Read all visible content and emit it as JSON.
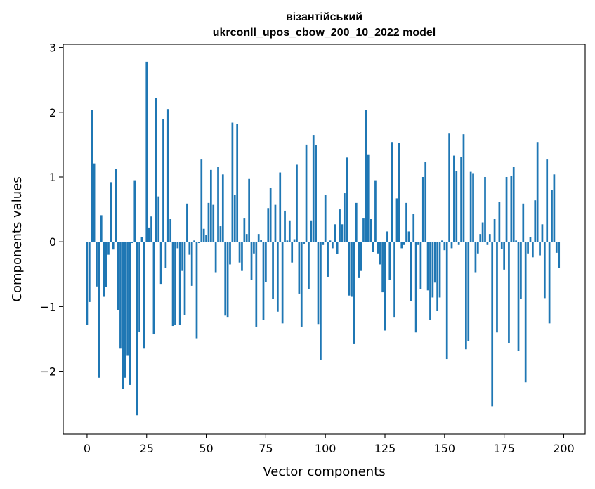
{
  "chart_data": {
    "type": "bar",
    "title_line1": "візантійський",
    "title_line2": "ukrconll_upos_cbow_200_10_2022 model",
    "xlabel": "Vector components",
    "ylabel": "Components values",
    "xlim": [
      -10,
      209
    ],
    "ylim": [
      -2.97,
      3.05
    ],
    "xticks": [
      0,
      25,
      50,
      75,
      100,
      125,
      150,
      175,
      200
    ],
    "yticks": [
      -2,
      -1,
      0,
      1,
      2,
      3
    ],
    "ytick_labels": [
      "−2",
      "−1",
      "0",
      "1",
      "2",
      "3"
    ],
    "grid": false,
    "bar_color": "#1f77b4",
    "values": [
      -1.28,
      -0.93,
      2.04,
      1.21,
      -0.69,
      -2.1,
      0.41,
      -0.85,
      -0.7,
      -0.2,
      0.92,
      -0.12,
      1.13,
      -1.05,
      -1.65,
      -2.27,
      -2.1,
      -1.75,
      -2.21,
      -0.02,
      0.95,
      -2.68,
      -1.39,
      0.07,
      -1.65,
      2.78,
      0.22,
      0.39,
      -1.43,
      2.22,
      0.7,
      -0.65,
      1.9,
      -0.4,
      2.05,
      0.35,
      -1.3,
      -1.28,
      -0.1,
      -1.28,
      -0.45,
      -1.13,
      0.59,
      -0.2,
      -0.68,
      0.02,
      -1.49,
      -0.02,
      1.27,
      0.2,
      0.1,
      0.6,
      1.11,
      0.57,
      -0.47,
      1.16,
      0.24,
      1.04,
      -1.14,
      -1.16,
      -0.35,
      1.84,
      0.72,
      1.82,
      -0.32,
      -0.45,
      0.37,
      0.12,
      0.97,
      -0.59,
      -0.18,
      -1.31,
      0.12,
      0.03,
      -1.21,
      -0.62,
      0.52,
      0.83,
      -0.88,
      0.57,
      -1.08,
      1.07,
      -1.26,
      0.48,
      0.02,
      0.33,
      -0.32,
      0.04,
      1.19,
      -0.8,
      -1.31,
      -0.03,
      1.5,
      -0.73,
      0.33,
      1.65,
      1.49,
      -1.27,
      -1.82,
      -0.05,
      0.72,
      -0.54,
      0.02,
      -0.1,
      0.27,
      -0.19,
      0.5,
      0.27,
      0.75,
      1.3,
      -0.83,
      -0.85,
      -1.57,
      0.6,
      -0.55,
      -0.45,
      0.37,
      2.04,
      1.35,
      0.35,
      -0.15,
      0.95,
      -0.18,
      -0.35,
      -0.78,
      -1.37,
      0.16,
      -0.59,
      1.54,
      -1.16,
      0.67,
      1.53,
      -0.1,
      -0.05,
      0.6,
      0.16,
      -0.91,
      0.43,
      -1.4,
      -0.05,
      -0.73,
      1.0,
      1.23,
      -0.75,
      -1.21,
      -0.86,
      -0.63,
      -1.07,
      -0.86,
      0.02,
      -0.13,
      -1.81,
      1.67,
      -0.1,
      1.33,
      1.09,
      -0.05,
      1.31,
      1.66,
      -1.66,
      -1.53,
      1.08,
      1.06,
      -0.47,
      -0.18,
      0.12,
      0.3,
      1.0,
      -0.05,
      0.12,
      -2.54,
      0.36,
      -1.4,
      0.61,
      -0.11,
      -0.43,
      1.0,
      -1.56,
      1.02,
      1.16,
      0.02,
      -1.69,
      -0.88,
      0.59,
      -2.17,
      -0.18,
      0.07,
      -0.24,
      0.64,
      1.54,
      -0.21,
      0.27,
      -0.87,
      1.27,
      -1.26,
      0.8,
      1.04,
      -0.17,
      -0.4
    ]
  }
}
